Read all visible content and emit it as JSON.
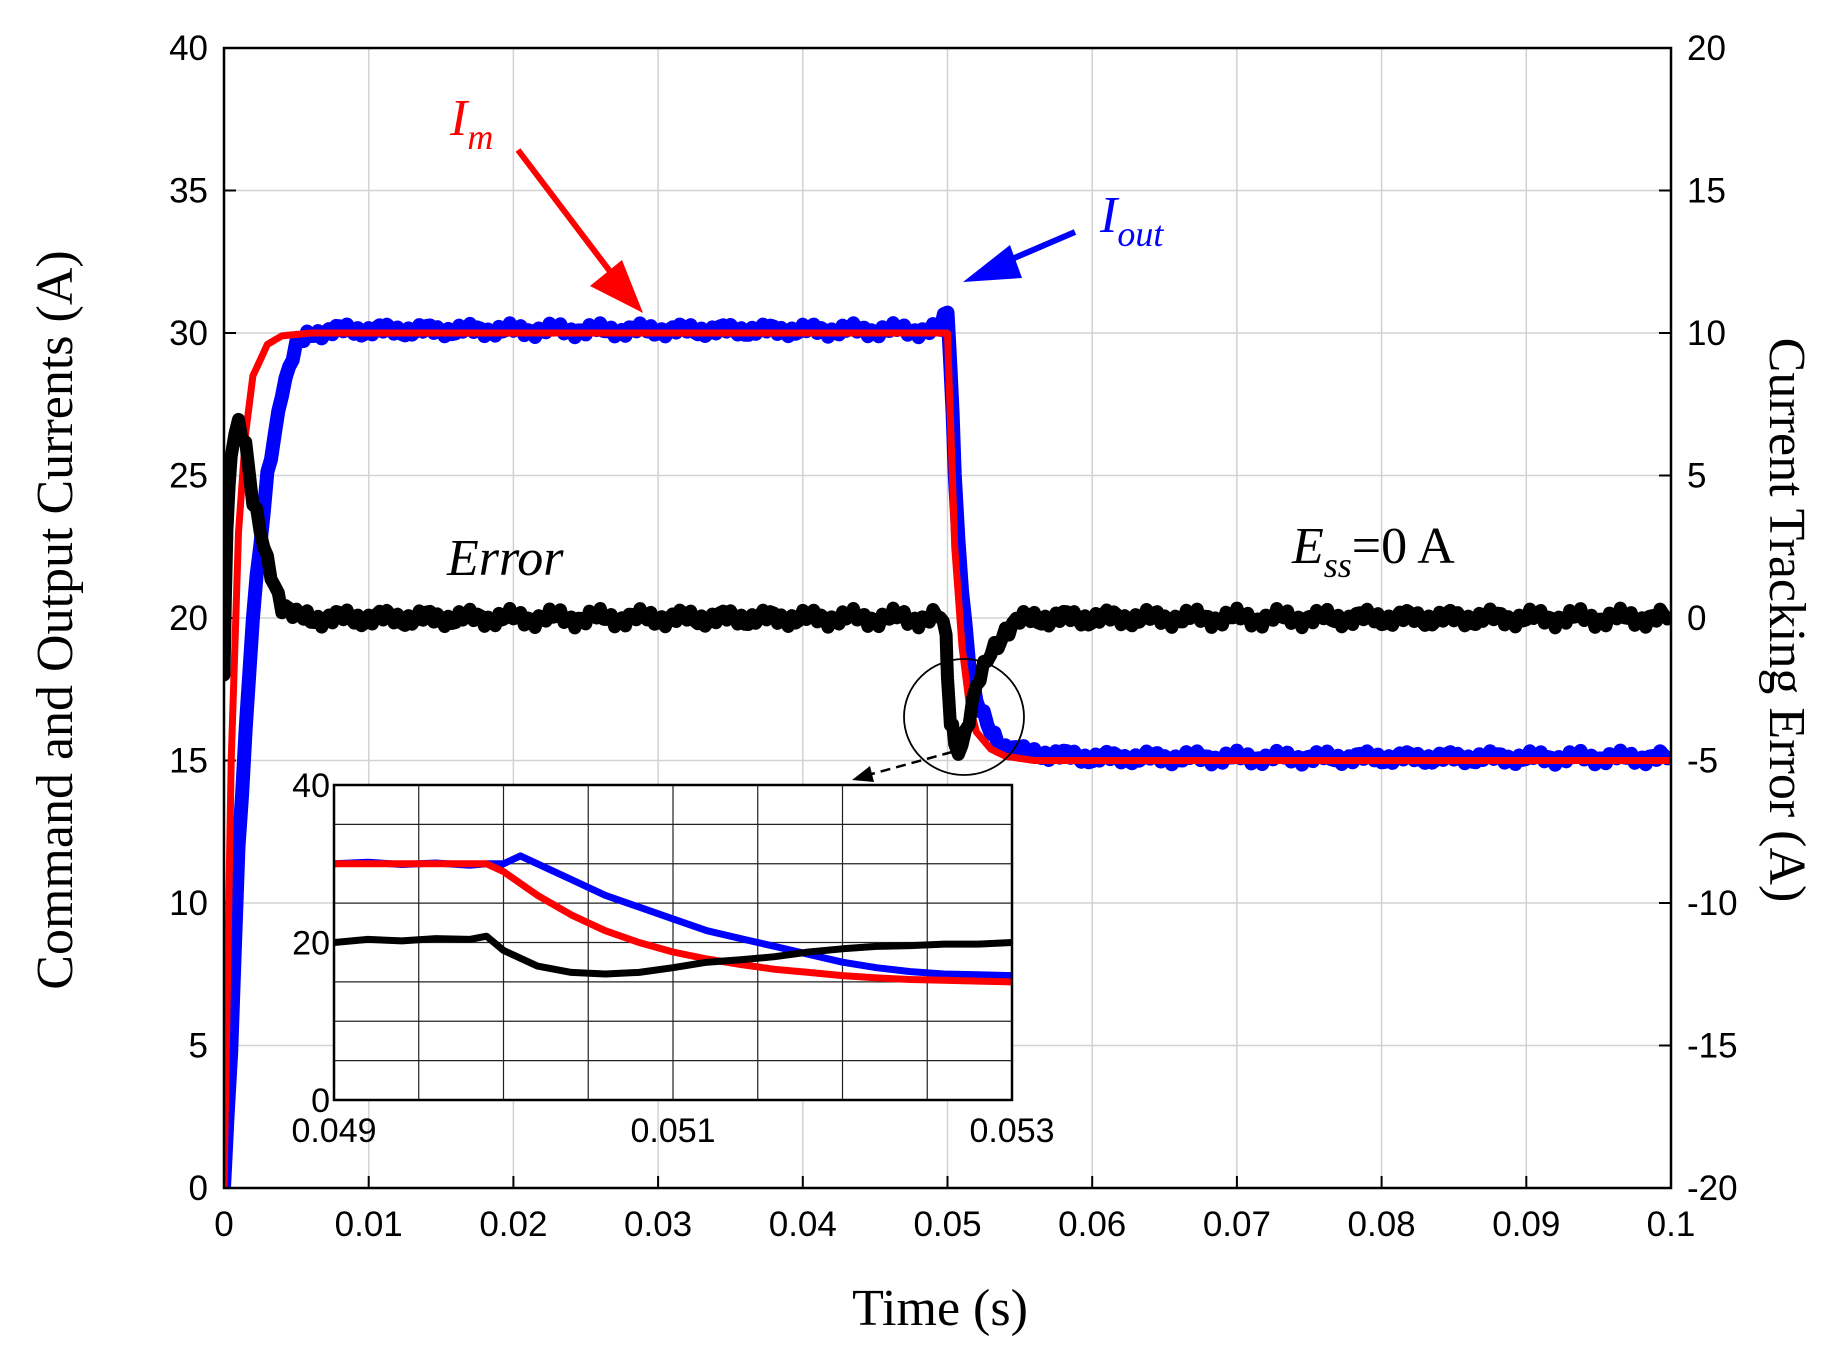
{
  "chart_data": {
    "type": "line",
    "xlabel": "Time (s)",
    "ylabel": "Command and Output Currents (A)",
    "y2label": "Current Tracking Error (A)",
    "xlim": [
      0,
      0.1
    ],
    "ylim": [
      0,
      40
    ],
    "y2lim": [
      -20,
      20
    ],
    "xticks": [
      "0",
      "0.01",
      "0.02",
      "0.03",
      "0.04",
      "0.05",
      "0.06",
      "0.07",
      "0.08",
      "0.09",
      "0.1"
    ],
    "yticks": [
      "0",
      "5",
      "10",
      "15",
      "20",
      "25",
      "30",
      "35",
      "40"
    ],
    "y2ticks": [
      "-20",
      "-15",
      "-10",
      "-5",
      "0",
      "5",
      "10",
      "15",
      "20"
    ],
    "grid": true,
    "series": [
      {
        "name": "I_out",
        "color": "#0000ff",
        "axis": "left",
        "x": [
          0,
          0.0005,
          0.001,
          0.002,
          0.003,
          0.004,
          0.005,
          0.006,
          0.008,
          0.01,
          0.02,
          0.03,
          0.04,
          0.0495,
          0.05,
          0.0502,
          0.0505,
          0.051,
          0.0515,
          0.052,
          0.053,
          0.054,
          0.055,
          0.06,
          0.07,
          0.08,
          0.09,
          0.1
        ],
        "y": [
          0,
          5,
          12,
          20,
          25,
          28,
          29.5,
          30,
          30.1,
          30.1,
          30.1,
          30.1,
          30.1,
          30.1,
          30.8,
          29,
          25,
          21,
          18.5,
          17,
          16,
          15.5,
          15.3,
          15.1,
          15.1,
          15.1,
          15.1,
          15.1
        ]
      },
      {
        "name": "I_m",
        "color": "#ff0000",
        "axis": "left",
        "x": [
          0,
          0.0005,
          0.001,
          0.0015,
          0.002,
          0.003,
          0.004,
          0.006,
          0.01,
          0.02,
          0.03,
          0.04,
          0.05,
          0.0502,
          0.0505,
          0.051,
          0.0515,
          0.052,
          0.053,
          0.054,
          0.056,
          0.06,
          0.07,
          0.08,
          0.09,
          0.1
        ],
        "y": [
          0,
          15,
          23,
          26.5,
          28.5,
          29.6,
          29.9,
          30,
          30,
          30,
          30,
          30,
          30,
          27,
          22.5,
          19,
          17,
          16,
          15.4,
          15.15,
          15,
          15,
          15,
          15,
          15,
          15
        ]
      },
      {
        "name": "Error",
        "color": "#000000",
        "axis": "right",
        "x": [
          0,
          0.0002,
          0.0005,
          0.001,
          0.0015,
          0.002,
          0.003,
          0.004,
          0.005,
          0.01,
          0.02,
          0.03,
          0.04,
          0.0495,
          0.0499,
          0.05,
          0.0502,
          0.0505,
          0.051,
          0.0515,
          0.052,
          0.053,
          0.054,
          0.055,
          0.056,
          0.06,
          0.07,
          0.08,
          0.09,
          0.1
        ],
        "y": [
          -2,
          3,
          6,
          7,
          6,
          4,
          2,
          0.5,
          0,
          0,
          0,
          0,
          0,
          0,
          -0.5,
          -2,
          -3.5,
          -4.5,
          -4.4,
          -3.5,
          -2.5,
          -1.2,
          -0.4,
          -0.1,
          0,
          0,
          0,
          0,
          0,
          0
        ]
      }
    ],
    "annotations": [
      {
        "text": "I",
        "subscript": "m",
        "color": "#ff0000"
      },
      {
        "text": "I",
        "subscript": "out",
        "color": "#0000ff"
      },
      {
        "text": "Error",
        "color": "#000000"
      },
      {
        "text": "E",
        "subscript": "ss",
        "suffix": "=0 A",
        "color": "#000000"
      }
    ],
    "inset": {
      "xlim": [
        0.049,
        0.053
      ],
      "ylim": [
        0,
        40
      ],
      "xticks": [
        "0.049",
        "0.051",
        "0.053"
      ],
      "yticks": [
        "0",
        "20",
        "40"
      ],
      "series": [
        {
          "name": "I_out",
          "color": "#0000ff",
          "x": [
            0.049,
            0.0492,
            0.0494,
            0.0496,
            0.0498,
            0.0499,
            0.05,
            0.0501,
            0.0502,
            0.0504,
            0.0506,
            0.0508,
            0.051,
            0.0512,
            0.0514,
            0.0516,
            0.0518,
            0.052,
            0.0522,
            0.0524,
            0.0526,
            0.0528,
            0.053
          ],
          "y": [
            30,
            30.2,
            29.9,
            30.1,
            29.8,
            30,
            30,
            31,
            30,
            28,
            26,
            24.5,
            23,
            21.5,
            20.5,
            19.5,
            18.5,
            17.5,
            16.8,
            16.3,
            16,
            15.9,
            15.8
          ]
        },
        {
          "name": "I_m",
          "color": "#ff0000",
          "x": [
            0.049,
            0.0495,
            0.0499,
            0.05,
            0.0502,
            0.0504,
            0.0506,
            0.0508,
            0.051,
            0.0512,
            0.0514,
            0.0516,
            0.0518,
            0.052,
            0.0522,
            0.0524,
            0.0526,
            0.0528,
            0.053
          ],
          "y": [
            30,
            30,
            30,
            29,
            26,
            23.5,
            21.5,
            20,
            18.8,
            17.9,
            17.2,
            16.6,
            16.2,
            15.8,
            15.5,
            15.3,
            15.2,
            15.1,
            15
          ]
        },
        {
          "name": "Error",
          "color": "#000000",
          "x": [
            0.049,
            0.0492,
            0.0494,
            0.0496,
            0.0498,
            0.0499,
            0.05,
            0.0502,
            0.0504,
            0.0506,
            0.0508,
            0.051,
            0.0512,
            0.0514,
            0.0516,
            0.0518,
            0.052,
            0.0522,
            0.0524,
            0.0526,
            0.0528,
            0.053
          ],
          "y": [
            20,
            20.4,
            20.2,
            20.5,
            20.4,
            20.8,
            19,
            17,
            16.2,
            16,
            16.2,
            16.8,
            17.5,
            17.8,
            18.2,
            18.8,
            19.2,
            19.5,
            19.6,
            19.8,
            19.8,
            20
          ]
        }
      ]
    }
  }
}
